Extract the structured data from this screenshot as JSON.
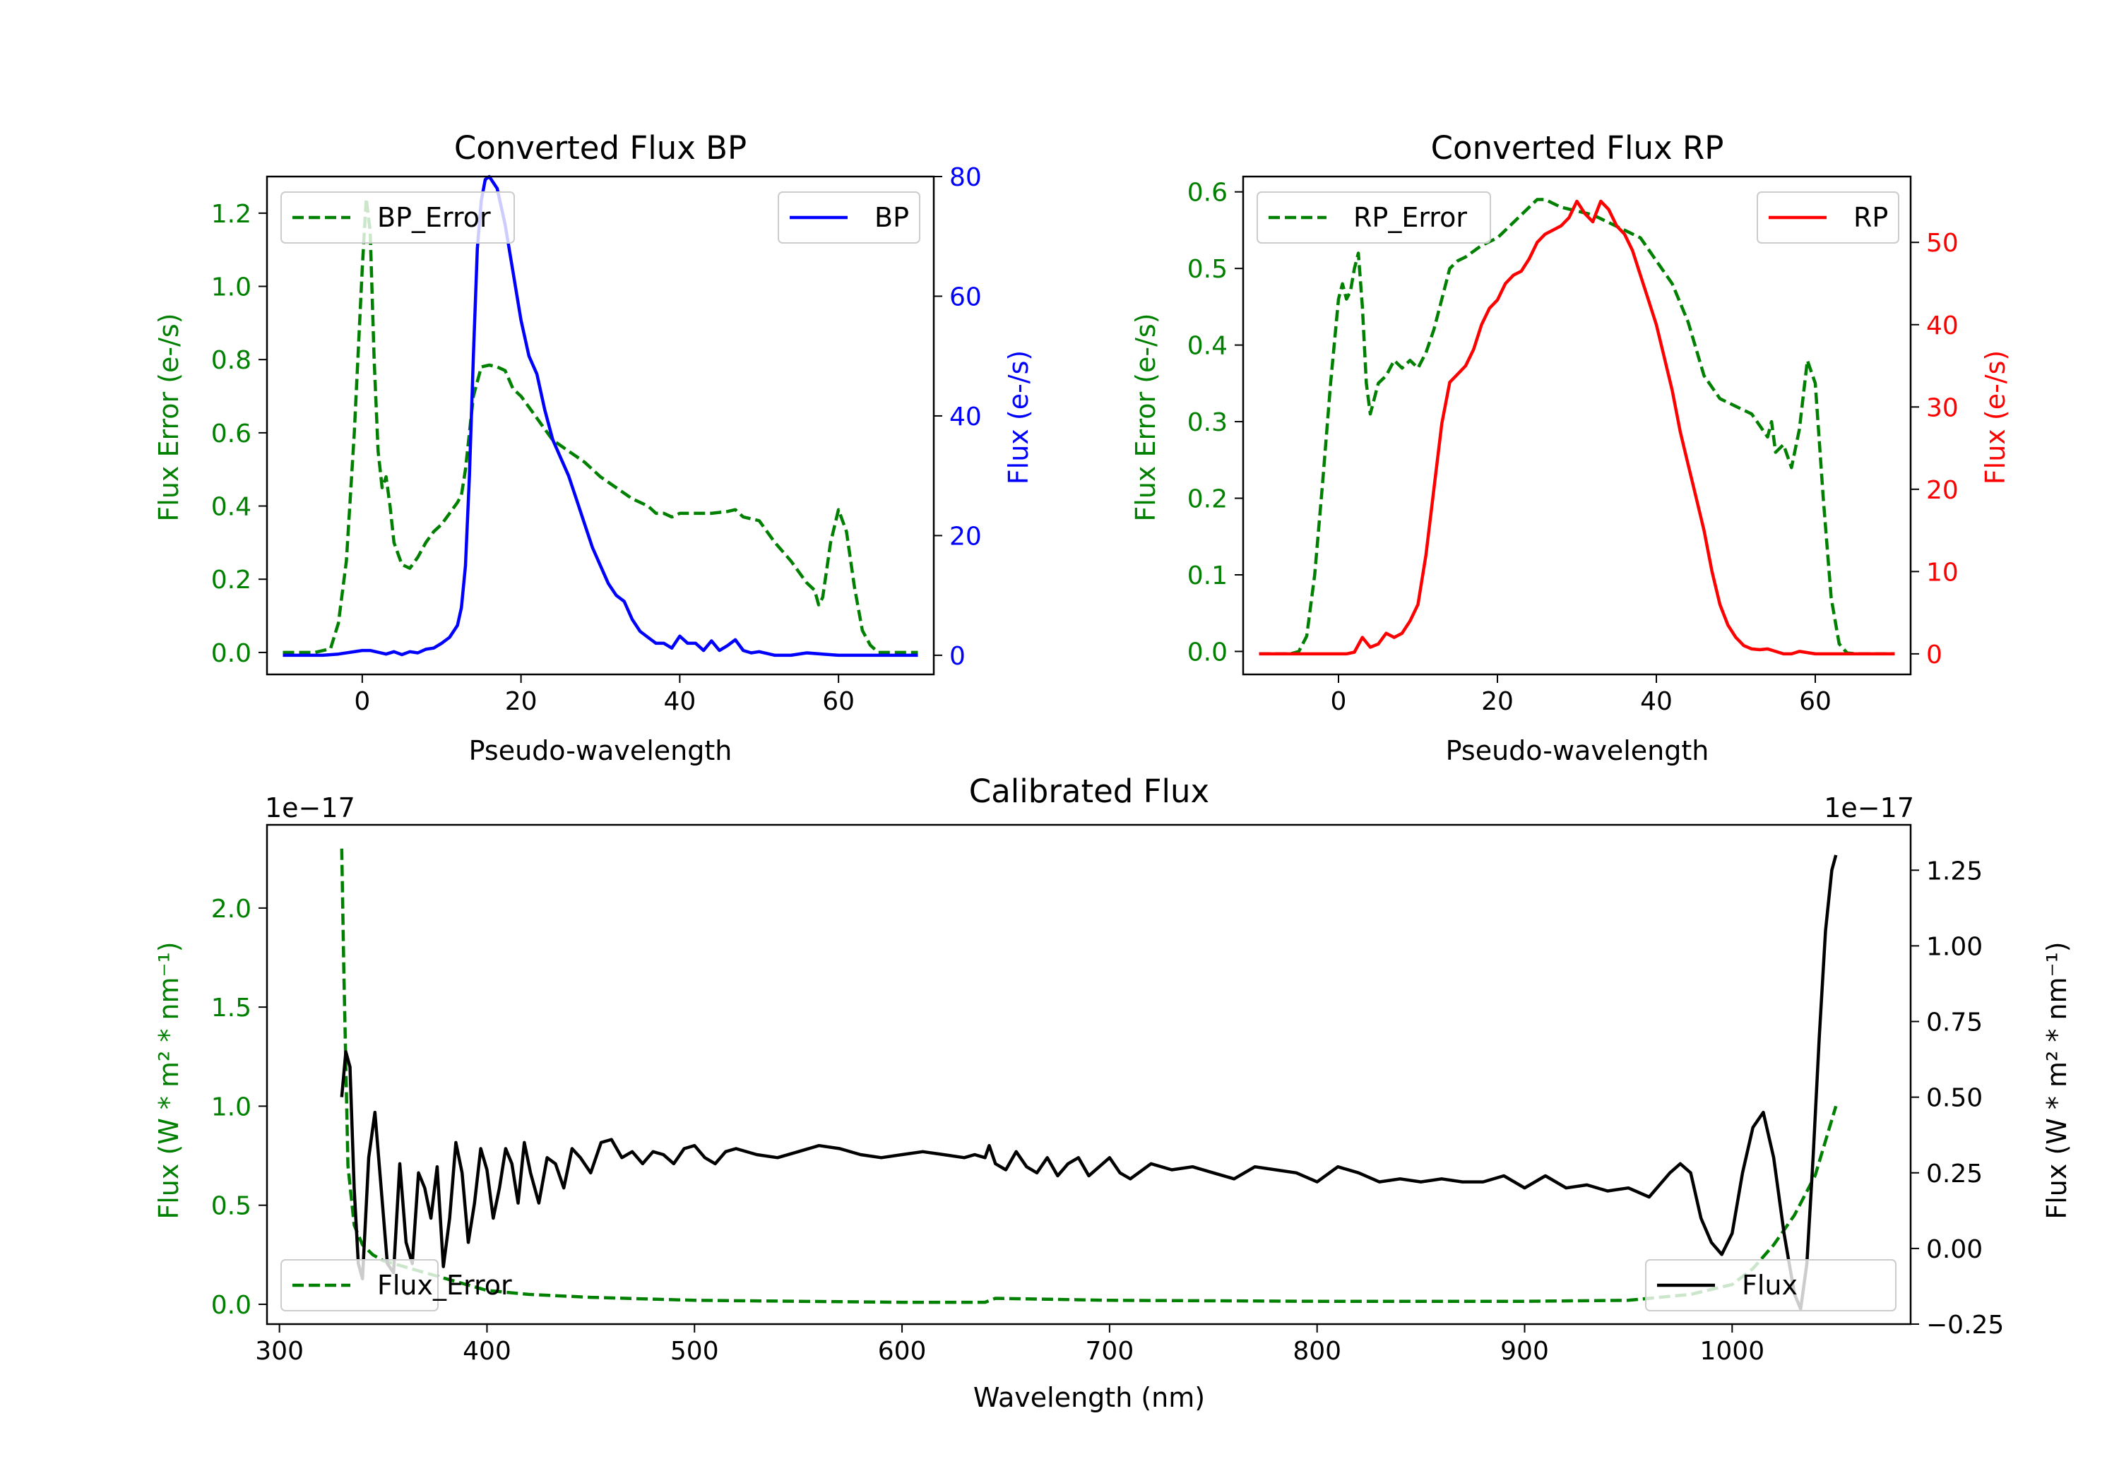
{
  "chart_data": [
    {
      "type": "line",
      "id": "bp",
      "title": "Converted Flux BP",
      "xlabel": "Pseudo-wavelength",
      "ylabel_left": "Flux Error (e-/s)",
      "ylabel_right": "Flux (e-/s)",
      "xlim": [
        -12,
        72
      ],
      "ylim_left": [
        -0.06,
        1.3
      ],
      "ylim_right": [
        -3.2,
        80
      ],
      "xticks": [
        0,
        20,
        40,
        60
      ],
      "yticks_left": [
        0.0,
        0.2,
        0.4,
        0.6,
        0.8,
        1.0,
        1.2
      ],
      "yticks_right": [
        0,
        20,
        40,
        60,
        80
      ],
      "xtick_labels": [
        "0",
        "20",
        "40",
        "60"
      ],
      "ytick_labels_left": [
        "0.0",
        "0.2",
        "0.4",
        "0.6",
        "0.8",
        "1.0",
        "1.2"
      ],
      "ytick_labels_right": [
        "0",
        "20",
        "40",
        "60",
        "80"
      ],
      "left_axis_color": "#008000",
      "right_axis_color": "#0000ff",
      "series": [
        {
          "name": "BP_Error",
          "axis": "left",
          "color": "#008000",
          "style": "dashed",
          "legend": "upper left",
          "x": [
            -10,
            -6,
            -4,
            -3,
            -2,
            -1,
            0,
            0.5,
            1,
            1.5,
            2,
            2.5,
            3,
            3.5,
            4,
            5,
            6,
            7,
            8,
            9,
            10,
            11,
            12,
            12.5,
            13,
            14,
            15,
            16,
            17,
            18,
            19,
            20,
            21,
            22,
            23,
            24,
            26,
            28,
            30,
            32,
            34,
            36,
            37,
            38,
            39,
            40,
            42,
            44,
            46,
            47,
            48,
            50,
            52,
            54,
            55,
            56,
            57,
            57.5,
            58,
            59,
            60,
            61,
            62,
            63,
            64,
            65,
            67,
            70
          ],
          "values": [
            0.0,
            0.0,
            0.01,
            0.08,
            0.25,
            0.6,
            1.05,
            1.24,
            1.15,
            0.8,
            0.55,
            0.45,
            0.48,
            0.4,
            0.3,
            0.24,
            0.23,
            0.26,
            0.3,
            0.33,
            0.35,
            0.38,
            0.41,
            0.43,
            0.5,
            0.7,
            0.78,
            0.785,
            0.78,
            0.77,
            0.72,
            0.7,
            0.67,
            0.64,
            0.61,
            0.58,
            0.55,
            0.52,
            0.48,
            0.45,
            0.42,
            0.4,
            0.38,
            0.38,
            0.37,
            0.38,
            0.38,
            0.38,
            0.385,
            0.39,
            0.37,
            0.36,
            0.3,
            0.25,
            0.22,
            0.19,
            0.17,
            0.13,
            0.15,
            0.3,
            0.39,
            0.33,
            0.18,
            0.06,
            0.02,
            0.0,
            0.0,
            0.0
          ]
        },
        {
          "name": "BP",
          "axis": "right",
          "color": "#0000ff",
          "style": "solid",
          "legend": "upper right",
          "x": [
            -10,
            -5,
            -3,
            0,
            1,
            3,
            4,
            5,
            6,
            7,
            8,
            9,
            10,
            11,
            12,
            12.5,
            13,
            13.5,
            14,
            14.5,
            15,
            15.5,
            16,
            17,
            18,
            19,
            20,
            21,
            22,
            23,
            24,
            25,
            26,
            27,
            28,
            29,
            30,
            31,
            32,
            33,
            34,
            35,
            36,
            37,
            38,
            39,
            40,
            41,
            42,
            43,
            44,
            45,
            46,
            47,
            48,
            49,
            50,
            52,
            54,
            56,
            58,
            60,
            62,
            65,
            70
          ],
          "values": [
            0,
            0,
            0.2,
            0.8,
            0.8,
            0.2,
            0.6,
            0.1,
            0.6,
            0.4,
            1.0,
            1.2,
            2.0,
            3.0,
            5.0,
            8.0,
            15.0,
            30.0,
            50.0,
            68.0,
            76.0,
            79.5,
            80.0,
            78.0,
            72.0,
            64.0,
            56.0,
            50.0,
            47.0,
            41.0,
            36.0,
            33.0,
            30.0,
            26.0,
            22.0,
            18.0,
            15.0,
            12.0,
            10.0,
            9.0,
            6.0,
            4.0,
            3.0,
            2.0,
            2.0,
            1.2,
            3.2,
            2.0,
            2.0,
            0.8,
            2.4,
            0.8,
            1.6,
            2.6,
            0.8,
            0.4,
            0.6,
            0.0,
            0.0,
            0.4,
            0.2,
            0.0,
            0.0,
            0.0,
            0.0
          ]
        }
      ]
    },
    {
      "type": "line",
      "id": "rp",
      "title": "Converted Flux RP",
      "xlabel": "Pseudo-wavelength",
      "ylabel_left": "Flux Error (e-/s)",
      "ylabel_right": "Flux (e-/s)",
      "xlim": [
        -12,
        72
      ],
      "ylim_left": [
        -0.03,
        0.62
      ],
      "ylim_right": [
        -2.5,
        58
      ],
      "xticks": [
        0,
        20,
        40,
        60
      ],
      "yticks_left": [
        0.0,
        0.1,
        0.2,
        0.3,
        0.4,
        0.5,
        0.6
      ],
      "yticks_right": [
        0,
        10,
        20,
        30,
        40,
        50
      ],
      "xtick_labels": [
        "0",
        "20",
        "40",
        "60"
      ],
      "ytick_labels_left": [
        "0.0",
        "0.1",
        "0.2",
        "0.3",
        "0.4",
        "0.5",
        "0.6"
      ],
      "ytick_labels_right": [
        "0",
        "10",
        "20",
        "30",
        "40",
        "50"
      ],
      "left_axis_color": "#008000",
      "right_axis_color": "#ff0000",
      "series": [
        {
          "name": "RP_Error",
          "axis": "left",
          "color": "#008000",
          "style": "dashed",
          "legend": "upper left",
          "x": [
            -10,
            -6,
            -5,
            -4,
            -3,
            -2,
            -1,
            0,
            0.5,
            1,
            1.5,
            2,
            2.5,
            3,
            3.5,
            4,
            5,
            6,
            7,
            8,
            9,
            10,
            11,
            12,
            13,
            14,
            15,
            16,
            18,
            20,
            22,
            24,
            25,
            26,
            27,
            28,
            30,
            32,
            34,
            36,
            38,
            40,
            42,
            44,
            46,
            48,
            50,
            52,
            54,
            54.5,
            55,
            56,
            57,
            58,
            59,
            60,
            61,
            62,
            63,
            64,
            65,
            67,
            70
          ],
          "values": [
            -0.003,
            -0.003,
            0.0,
            0.02,
            0.1,
            0.22,
            0.35,
            0.46,
            0.48,
            0.46,
            0.47,
            0.5,
            0.52,
            0.45,
            0.35,
            0.31,
            0.35,
            0.36,
            0.38,
            0.37,
            0.38,
            0.37,
            0.39,
            0.42,
            0.46,
            0.5,
            0.51,
            0.515,
            0.53,
            0.54,
            0.56,
            0.58,
            0.59,
            0.59,
            0.585,
            0.58,
            0.575,
            0.57,
            0.56,
            0.55,
            0.54,
            0.51,
            0.48,
            0.43,
            0.36,
            0.33,
            0.32,
            0.31,
            0.28,
            0.3,
            0.26,
            0.27,
            0.24,
            0.29,
            0.38,
            0.35,
            0.2,
            0.07,
            0.01,
            -0.002,
            -0.003,
            -0.003,
            -0.003
          ],
          "legend_label": "RP_Error"
        },
        {
          "name": "RP",
          "axis": "right",
          "color": "#ff0000",
          "style": "solid",
          "legend": "upper right",
          "x": [
            -10,
            -5,
            -2,
            0,
            1,
            2,
            3,
            4,
            5,
            6,
            7,
            8,
            9,
            10,
            11,
            12,
            13,
            14,
            15,
            16,
            17,
            18,
            19,
            20,
            21,
            22,
            23,
            24,
            25,
            26,
            27,
            28,
            29,
            30,
            31,
            32,
            33,
            34,
            35,
            36,
            37,
            38,
            39,
            40,
            41,
            42,
            43,
            44,
            45,
            46,
            47,
            48,
            49,
            50,
            51,
            52,
            53,
            54,
            55,
            56,
            57,
            58,
            60,
            65,
            70
          ],
          "values": [
            0,
            0,
            0,
            0,
            0,
            0.2,
            2.0,
            0.8,
            1.2,
            2.5,
            2.0,
            2.5,
            4.0,
            6.0,
            12.0,
            20.0,
            28.0,
            33.0,
            34.0,
            35.0,
            37.0,
            40.0,
            42.0,
            43.0,
            45.0,
            46.0,
            46.5,
            48.0,
            50.0,
            51.0,
            51.5,
            52.0,
            53.0,
            55.0,
            53.5,
            52.5,
            55.0,
            54.0,
            52.0,
            51.0,
            49.0,
            46.0,
            43.0,
            40.0,
            36.0,
            32.0,
            27.0,
            23.0,
            19.0,
            15.0,
            10.0,
            6.0,
            3.5,
            2.0,
            1.0,
            0.6,
            0.5,
            0.6,
            0.3,
            0.0,
            0.0,
            0.3,
            0.0,
            0.0,
            0.0
          ]
        }
      ]
    },
    {
      "type": "line",
      "id": "calibrated",
      "title": "Calibrated Flux",
      "xlabel": "Wavelength (nm)",
      "ylabel_left": "Flux (W * m² * nm⁻¹)",
      "ylabel_right": "Flux (W * m² * nm⁻¹)",
      "offset_left": "1e−17",
      "offset_right": "1e−17",
      "xlim": [
        294,
        1086
      ],
      "ylim_left": [
        -0.1,
        2.42
      ],
      "ylim_right": [
        -0.25,
        1.4
      ],
      "xticks": [
        300,
        400,
        500,
        600,
        700,
        800,
        900,
        1000
      ],
      "yticks_left": [
        0.0,
        0.5,
        1.0,
        1.5,
        2.0
      ],
      "yticks_right": [
        -0.25,
        0.0,
        0.25,
        0.5,
        0.75,
        1.0,
        1.25
      ],
      "xtick_labels": [
        "300",
        "400",
        "500",
        "600",
        "700",
        "800",
        "900",
        "1000"
      ],
      "ytick_labels_left": [
        "0.0",
        "0.5",
        "1.0",
        "1.5",
        "2.0"
      ],
      "ytick_labels_right": [
        "−0.25",
        "0.00",
        "0.25",
        "0.50",
        "0.75",
        "1.00",
        "1.25"
      ],
      "left_axis_color": "#008000",
      "right_axis_color": "#000000",
      "series": [
        {
          "name": "Flux_Error",
          "axis": "left",
          "color": "#008000",
          "style": "dashed",
          "legend": "lower right",
          "x": [
            330,
            331,
            333,
            336,
            340,
            345,
            350,
            360,
            370,
            380,
            390,
            400,
            420,
            450,
            500,
            550,
            600,
            640,
            645,
            700,
            800,
            900,
            950,
            980,
            1000,
            1010,
            1020,
            1030,
            1040,
            1050
          ],
          "values": [
            2.3,
            1.7,
            0.7,
            0.4,
            0.3,
            0.25,
            0.22,
            0.19,
            0.16,
            0.13,
            0.1,
            0.07,
            0.05,
            0.035,
            0.02,
            0.015,
            0.01,
            0.01,
            0.03,
            0.02,
            0.015,
            0.015,
            0.02,
            0.05,
            0.1,
            0.18,
            0.3,
            0.45,
            0.65,
            1.0
          ]
        },
        {
          "name": "Flux",
          "axis": "right",
          "color": "#000000",
          "style": "solid",
          "legend": "lower left",
          "x": [
            330,
            332,
            334,
            336,
            338,
            340,
            343,
            346,
            349,
            352,
            355,
            358,
            361,
            364,
            367,
            370,
            373,
            376,
            379,
            382,
            385,
            388,
            391,
            394,
            397,
            400,
            403,
            406,
            409,
            412,
            415,
            418,
            421,
            425,
            429,
            433,
            437,
            441,
            445,
            450,
            455,
            460,
            465,
            470,
            475,
            480,
            485,
            490,
            495,
            500,
            505,
            510,
            515,
            520,
            530,
            540,
            550,
            560,
            570,
            580,
            590,
            600,
            610,
            620,
            630,
            635,
            640,
            642,
            645,
            650,
            655,
            660,
            665,
            670,
            675,
            680,
            685,
            690,
            695,
            700,
            705,
            710,
            720,
            730,
            740,
            750,
            760,
            770,
            780,
            790,
            800,
            810,
            820,
            830,
            840,
            850,
            860,
            870,
            880,
            890,
            900,
            910,
            920,
            930,
            940,
            950,
            960,
            970,
            975,
            980,
            985,
            990,
            995,
            1000,
            1005,
            1010,
            1015,
            1020,
            1025,
            1030,
            1033,
            1036,
            1039,
            1042,
            1045,
            1048,
            1050
          ],
          "values": [
            0.5,
            0.65,
            0.6,
            0.2,
            -0.05,
            -0.1,
            0.3,
            0.45,
            0.2,
            -0.05,
            -0.08,
            0.28,
            0.02,
            -0.05,
            0.25,
            0.2,
            0.1,
            0.27,
            -0.06,
            0.1,
            0.35,
            0.25,
            0.02,
            0.15,
            0.33,
            0.26,
            0.1,
            0.2,
            0.33,
            0.28,
            0.15,
            0.35,
            0.25,
            0.15,
            0.3,
            0.28,
            0.2,
            0.33,
            0.3,
            0.25,
            0.35,
            0.36,
            0.3,
            0.32,
            0.28,
            0.32,
            0.31,
            0.28,
            0.33,
            0.34,
            0.3,
            0.28,
            0.32,
            0.33,
            0.31,
            0.3,
            0.32,
            0.34,
            0.33,
            0.31,
            0.3,
            0.31,
            0.32,
            0.31,
            0.3,
            0.31,
            0.3,
            0.34,
            0.28,
            0.26,
            0.32,
            0.27,
            0.25,
            0.3,
            0.24,
            0.28,
            0.3,
            0.24,
            0.27,
            0.3,
            0.25,
            0.23,
            0.28,
            0.26,
            0.27,
            0.25,
            0.23,
            0.27,
            0.26,
            0.25,
            0.22,
            0.27,
            0.25,
            0.22,
            0.23,
            0.22,
            0.23,
            0.22,
            0.22,
            0.24,
            0.2,
            0.24,
            0.2,
            0.21,
            0.19,
            0.2,
            0.17,
            0.25,
            0.28,
            0.25,
            0.1,
            0.02,
            -0.02,
            0.05,
            0.25,
            0.4,
            0.45,
            0.3,
            0.05,
            -0.15,
            -0.2,
            -0.05,
            0.3,
            0.7,
            1.05,
            1.25,
            1.3
          ]
        }
      ]
    }
  ]
}
